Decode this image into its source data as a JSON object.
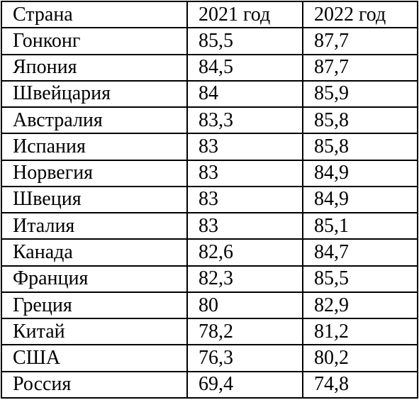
{
  "table": {
    "headers": [
      "Страна",
      "2021 год",
      "2022 год"
    ],
    "rows": [
      [
        "Гонконг",
        "85,5",
        "87,7"
      ],
      [
        "Япония",
        "84,5",
        "87,7"
      ],
      [
        "Швейцария",
        "84",
        "85,9"
      ],
      [
        "Австралия",
        "83,3",
        "85,8"
      ],
      [
        "Испания",
        "83",
        "85,8"
      ],
      [
        "Норвегия",
        "83",
        "84,9"
      ],
      [
        "Швеция",
        "83",
        "84,9"
      ],
      [
        "Италия",
        "83",
        "85,1"
      ],
      [
        "Канада",
        "82,6",
        "84,7"
      ],
      [
        "Франция",
        "82,3",
        "85,5"
      ],
      [
        "Греция",
        "80",
        "82,9"
      ],
      [
        "Китай",
        "78,2",
        "81,2"
      ],
      [
        "США",
        "76,3",
        "80,2"
      ],
      [
        "Россия",
        "69,4",
        "74,8"
      ]
    ]
  }
}
